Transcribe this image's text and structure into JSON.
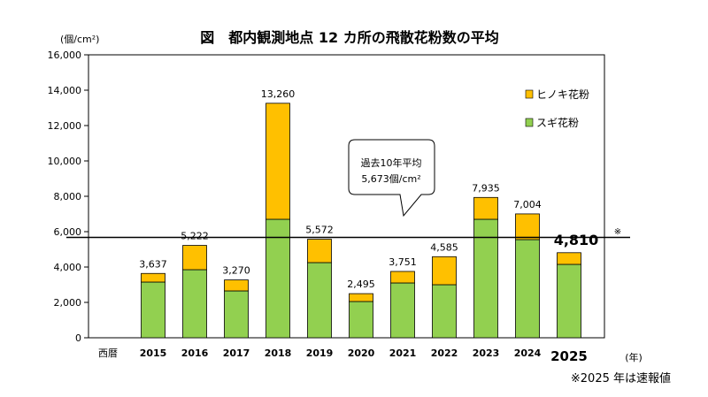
{
  "chart_data": {
    "type": "bar",
    "stacked": true,
    "title": "図　都内観測地点 12 カ所の飛散花粉数の平均",
    "y_unit": "(個/cm²)",
    "x_axis_prefix": "西暦",
    "x_unit": "(年)",
    "ylim": [
      0,
      16000
    ],
    "y_ticks": [
      "0",
      "2,000",
      "4,000",
      "6,000",
      "8,000",
      "10,000",
      "12,000",
      "14,000",
      "16,000"
    ],
    "y_tick_values": [
      0,
      2000,
      4000,
      6000,
      8000,
      10000,
      12000,
      14000,
      16000
    ],
    "categories": [
      "2015",
      "2016",
      "2017",
      "2018",
      "2019",
      "2020",
      "2021",
      "2022",
      "2023",
      "2024",
      "2025"
    ],
    "series": [
      {
        "name": "スギ花粉",
        "color": "#92d050",
        "values": [
          3150,
          3850,
          2650,
          6700,
          4250,
          2050,
          3100,
          3000,
          6700,
          5550,
          4150
        ]
      },
      {
        "name": "ヒノキ花粉",
        "color": "#ffc000",
        "values": [
          487,
          1372,
          620,
          6560,
          1322,
          445,
          651,
          1585,
          1235,
          1454,
          660
        ]
      }
    ],
    "totals": [
      3637,
      5222,
      3270,
      13260,
      5572,
      2495,
      3751,
      4585,
      7935,
      7004,
      4810
    ],
    "total_labels": [
      "3,637",
      "5,222",
      "3,270",
      "13,260",
      "5,572",
      "2,495",
      "3,751",
      "4,585",
      "7,935",
      "7,004",
      "4,810"
    ],
    "total_label_note": "※",
    "highlight_category": "2025",
    "reference_line": {
      "value": 5673,
      "label_line1": "過去10年平均",
      "label_line2": "5,673個/cm²"
    },
    "legend_position": "top-right",
    "grid": false
  },
  "footnote": "※2025 年は速報値"
}
